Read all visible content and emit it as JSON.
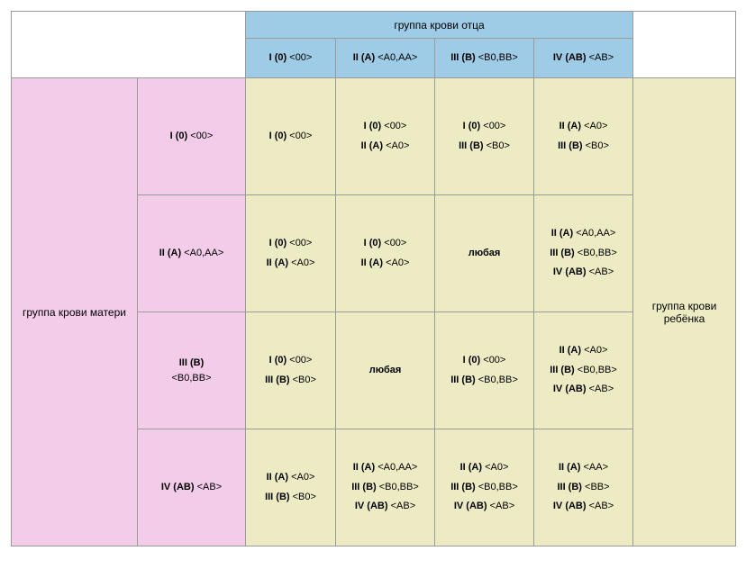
{
  "colors": {
    "fatherHeader": "#9ecbe6",
    "motherHeader": "#f3ccea",
    "cellBg": "#ecebc4",
    "border": "#9a9a9a",
    "text": "#000000"
  },
  "typography": {
    "family": "Verdana, Arial, sans-serif",
    "headerSize": 12,
    "cellSize": 11
  },
  "labels": {
    "fatherTitle": "группа крови отца",
    "motherTitle": "группа крови матери",
    "childTitle": "группа крови ребёнка",
    "any": "любая"
  },
  "fatherCols": [
    {
      "group": "I (0)",
      "geno": "<00>"
    },
    {
      "group": "II (A)",
      "geno": "<A0,AA>"
    },
    {
      "group": "III (B)",
      "geno": "<B0,BB>"
    },
    {
      "group": "IV (AB)",
      "geno": "<AB>"
    }
  ],
  "motherRows": [
    {
      "group": "I (0)",
      "geno": "<00>"
    },
    {
      "group": "II (A)",
      "geno": "<A0,AA>"
    },
    {
      "group": "III (B)",
      "geno": "<B0,BB>"
    },
    {
      "group": "IV (AB)",
      "geno": "<AB>"
    }
  ],
  "cells": [
    [
      [
        {
          "group": "I (0)",
          "geno": "<00>"
        }
      ],
      [
        {
          "group": "I (0)",
          "geno": "<00>"
        },
        {
          "group": "II (A)",
          "geno": "<A0>"
        }
      ],
      [
        {
          "group": "I (0)",
          "geno": "<00>"
        },
        {
          "group": "III (B)",
          "geno": "<B0>"
        }
      ],
      [
        {
          "group": "II (A)",
          "geno": "<A0>"
        },
        {
          "group": "III (B)",
          "geno": "<B0>"
        }
      ]
    ],
    [
      [
        {
          "group": "I (0)",
          "geno": "<00>"
        },
        {
          "group": "II (A)",
          "geno": "<A0>"
        }
      ],
      [
        {
          "group": "I (0)",
          "geno": "<00>"
        },
        {
          "group": "II (A)",
          "geno": "<A0>"
        }
      ],
      [
        {
          "any": true
        }
      ],
      [
        {
          "group": "II (A)",
          "geno": "<A0,AA>"
        },
        {
          "group": "III (B)",
          "geno": "<B0,BB>"
        },
        {
          "group": "IV (AB)",
          "geno": "<AB>"
        }
      ]
    ],
    [
      [
        {
          "group": "I (0)",
          "geno": "<00>"
        },
        {
          "group": "III (B)",
          "geno": "<B0>"
        }
      ],
      [
        {
          "any": true
        }
      ],
      [
        {
          "group": "I (0)",
          "geno": "<00>"
        },
        {
          "group": "III (B)",
          "geno": "<B0,BB>"
        }
      ],
      [
        {
          "group": "II (A)",
          "geno": "<A0>"
        },
        {
          "group": "III (B)",
          "geno": "<B0,BB>"
        },
        {
          "group": "IV (AB)",
          "geno": "<AB>"
        }
      ]
    ],
    [
      [
        {
          "group": "II (A)",
          "geno": "<A0>"
        },
        {
          "group": "III (B)",
          "geno": "<B0>"
        }
      ],
      [
        {
          "group": "II (A)",
          "geno": "<A0,AA>"
        },
        {
          "group": "III (B)",
          "geno": "<B0,BB>"
        },
        {
          "group": "IV (AB)",
          "geno": "<AB>"
        }
      ],
      [
        {
          "group": "II (A)",
          "geno": "<A0>"
        },
        {
          "group": "III (B)",
          "geno": "<B0,BB>"
        },
        {
          "group": "IV (AB)",
          "geno": "<AB>"
        }
      ],
      [
        {
          "group": "II (A)",
          "geno": "<AA>"
        },
        {
          "group": "III (B)",
          "geno": "<BB>"
        },
        {
          "group": "IV (AB)",
          "geno": "<AB>"
        }
      ]
    ]
  ]
}
